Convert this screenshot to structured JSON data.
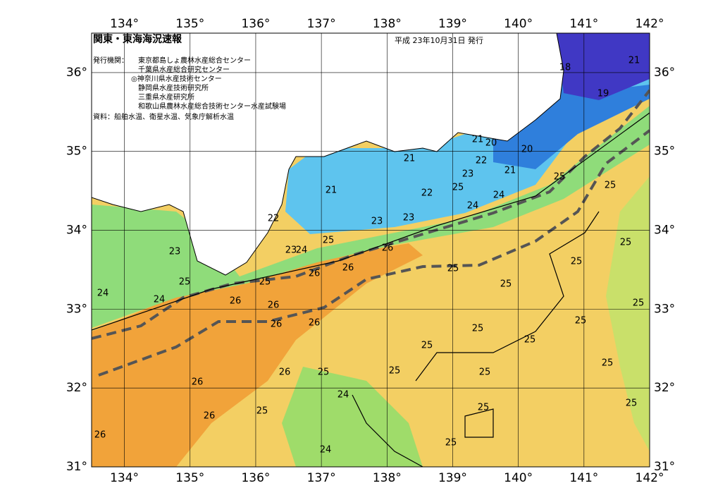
{
  "header": {
    "title": "関東・東海海況速報",
    "date": "平成 23年10月31日 発行",
    "issuer_label": "発行機関：",
    "issuers": [
      "東京都島しょ農林水産総合センター",
      "千葉県水産総合研究センター",
      "◎神奈川県水産技術センター",
      "静岡県水産技術研究所",
      "三重県水産研究所",
      "和歌山県農林水産総合技術センター水産試験場"
    ],
    "source": "資料：船舶水温、衛星水温、気象庁解析水温"
  },
  "map": {
    "lon_range": [
      133.5,
      142
    ],
    "lat_range": [
      31,
      36.5
    ],
    "lon_ticks": [
      {
        "value": 134,
        "label": "134°"
      },
      {
        "value": 135,
        "label": "135°"
      },
      {
        "value": 136,
        "label": "136°"
      },
      {
        "value": 137,
        "label": "137°"
      },
      {
        "value": 138,
        "label": "138°"
      },
      {
        "value": 139,
        "label": "139°"
      },
      {
        "value": 140,
        "label": "140°"
      },
      {
        "value": 141,
        "label": "141°"
      },
      {
        "value": 142,
        "label": "142°"
      }
    ],
    "lat_ticks": [
      {
        "value": 31,
        "label": "31°"
      },
      {
        "value": 32,
        "label": "32°"
      },
      {
        "value": 33,
        "label": "33°"
      },
      {
        "value": 34,
        "label": "34°"
      },
      {
        "value": 35,
        "label": "35°"
      },
      {
        "value": 36,
        "label": "36°"
      }
    ],
    "isotherm_labels": [
      24,
      24,
      23,
      25,
      22,
      23,
      24,
      25,
      26,
      26,
      26,
      26,
      26,
      26,
      25,
      21,
      21,
      23,
      23,
      22,
      25,
      23,
      21,
      20,
      22,
      21,
      20,
      24,
      24,
      25,
      18,
      21,
      19,
      25,
      25,
      25,
      25,
      25,
      25,
      25,
      25,
      25,
      25,
      26,
      25,
      25,
      26,
      26,
      26,
      24,
      25,
      25,
      25,
      25,
      25,
      26,
      24,
      25
    ]
  }
}
